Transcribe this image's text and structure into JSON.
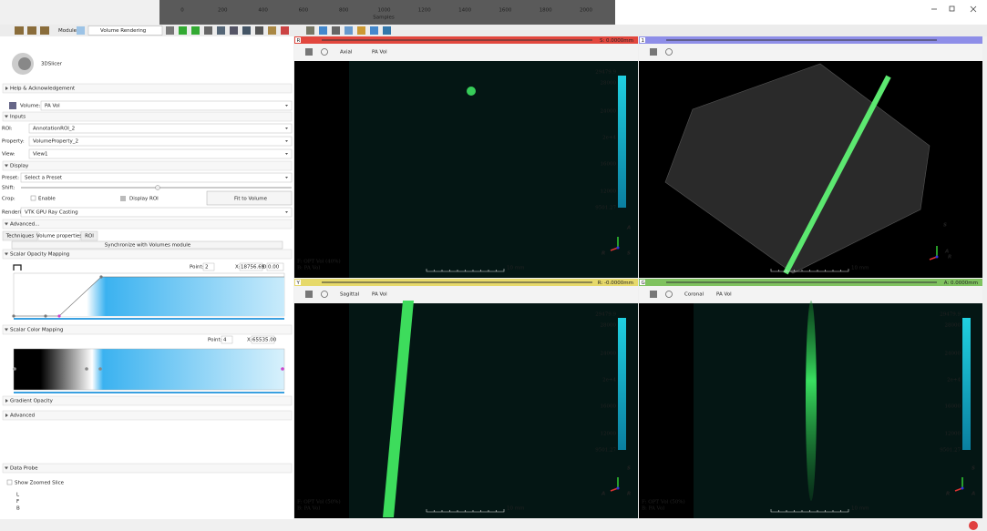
{
  "top_chart": {
    "xticks": [
      "0",
      "200",
      "400",
      "600",
      "800",
      "1000",
      "1200",
      "1400",
      "1600",
      "1800",
      "2000"
    ],
    "xlabel": "Samples"
  },
  "toolbar": {
    "modules_label": "Modules:",
    "module": "Volume Rendering"
  },
  "panel": {
    "logo": "3DSlicer",
    "help": "Help & Acknowledgement",
    "volume_label": "Volume:",
    "volume": "PA Vol",
    "inputs": {
      "title": "Inputs",
      "roi_label": "ROI:",
      "roi": "AnnotationROI_2",
      "property_label": "Property:",
      "property": "VolumeProperty_2",
      "view_label": "View:",
      "view": "View1"
    },
    "display": {
      "title": "Display",
      "preset_label": "Preset:",
      "preset": "Select a Preset",
      "shift_label": "Shift:",
      "crop_label": "Crop:",
      "enable": "Enable",
      "display_roi": "Display ROI",
      "fit": "Fit to Volume",
      "rendering_label": "Rendering:",
      "rendering": "VTK GPU Ray Casting"
    },
    "advanced": {
      "title": "Advanced...",
      "tabs": [
        "Techniques",
        "Volume properties",
        "ROI"
      ],
      "sync": "Synchronize with Volumes module",
      "opacity": {
        "title": "Scalar Opacity Mapping",
        "point_label": "Point:",
        "point": "2",
        "x_label": "X:",
        "x": "18756.69",
        "o_label": "O:",
        "o": "0.00"
      },
      "color": {
        "title": "Scalar Color Mapping",
        "point_label": "Point:",
        "point": "4",
        "x_label": "X:",
        "x": "65535.00"
      },
      "gradient": "Gradient Opacity",
      "advanced": "Advanced"
    },
    "data_probe": {
      "title": "Data Probe",
      "zoom": "Show Zoomed Slice",
      "lines": [
        "L",
        "F",
        "B"
      ]
    }
  },
  "views": [
    {
      "header": "R",
      "offset": "S: 0.0000mm",
      "orientation": "Axial",
      "volume": "PA Vol",
      "colorbar": [
        "29479.9",
        "28000",
        "24000",
        "2e+4",
        "16000",
        "12000",
        "9501.27"
      ],
      "foreground": "F: OPT Vol (40%)",
      "background": "B: PA Vol",
      "scale": "10 mm",
      "axes": [
        "A",
        "R",
        "S"
      ]
    },
    {
      "header": "1",
      "scale": "10 mm",
      "axes": [
        "S",
        "A",
        "R"
      ]
    },
    {
      "header": "Y",
      "offset": "R: -0.0000mm",
      "orientation": "Sagittal",
      "volume": "PA Vol",
      "colorbar": [
        "29479.9",
        "28000",
        "24000",
        "2e+4",
        "16000",
        "12000",
        "9501.27"
      ],
      "foreground": "F: OPT Vol (50%)",
      "background": "B: PA Vol",
      "scale": "10 mm",
      "axes": [
        "S",
        "A",
        "R"
      ]
    },
    {
      "header": "G",
      "offset": "A: 0.0000mm",
      "orientation": "Coronal",
      "volume": "PA Vol",
      "colorbar": [
        "29479.9",
        "28000",
        "24000",
        "2e+4",
        "16000",
        "12000",
        "9501.27"
      ],
      "foreground": "F: OPT Vol (50%)",
      "background": "B: PA Vol",
      "scale": "10 mm",
      "axes": [
        "S",
        "R",
        "A"
      ]
    }
  ]
}
